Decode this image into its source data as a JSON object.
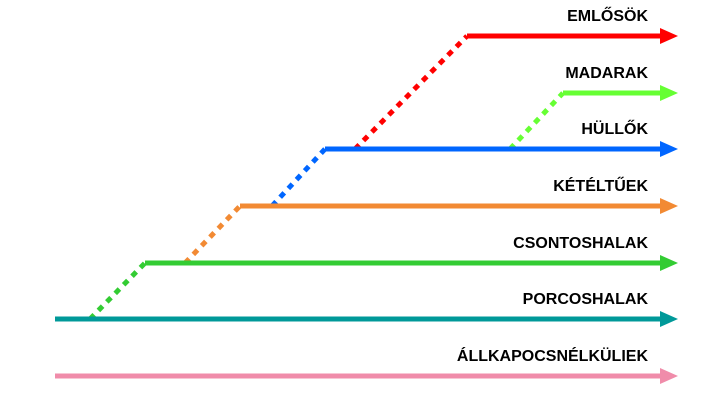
{
  "groups": [
    {
      "label": "EMLŐSÖK",
      "color": "#ff0000"
    },
    {
      "label": "MADARAK",
      "color": "#66ff33"
    },
    {
      "label": "HÜLLŐK",
      "color": "#0066ff"
    },
    {
      "label": "KÉTÉLTŰEK",
      "color": "#f28a33"
    },
    {
      "label": "CSONTOSHALAK",
      "color": "#33cc33"
    },
    {
      "label": "PORCOSHALAK",
      "color": "#009999"
    },
    {
      "label": "ÁLLKAPOCSNÉLKÜLIEK",
      "color": "#f08caa"
    }
  ]
}
